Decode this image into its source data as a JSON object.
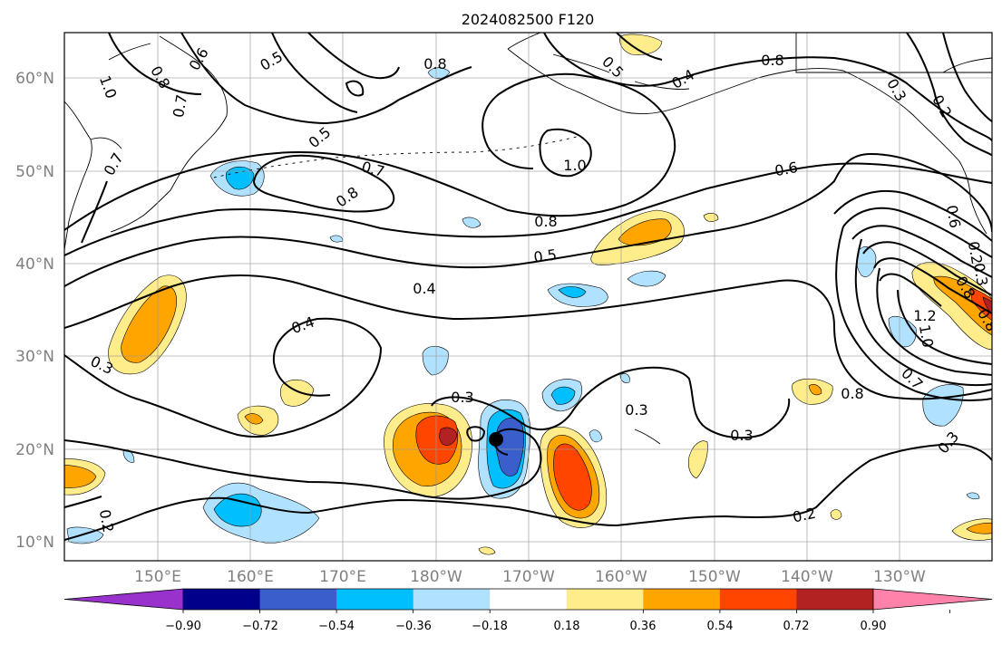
{
  "title": "2024082500 F120",
  "map": {
    "projection": "PlateCarree",
    "lon_range": [
      140,
      240
    ],
    "lat_range": [
      8,
      65
    ],
    "gridlines": true,
    "lat_ticks": [
      "10°N",
      "20°N",
      "30°N",
      "40°N",
      "50°N",
      "60°N"
    ],
    "lon_ticks": [
      "150°E",
      "160°E",
      "170°E",
      "180°W",
      "170°W",
      "160°W",
      "150°W",
      "140°W",
      "130°W"
    ],
    "storm_marker": {
      "lon": -173.5,
      "lat": 21
    }
  },
  "contour_labels": [
    "0.8",
    "0.5",
    "0.6",
    "0.7",
    "1.0",
    "0.8",
    "0.5",
    "0.7",
    "0.5",
    "0.8",
    "0.7",
    "0.8",
    "1.0",
    "0.6",
    "0.8",
    "0.5",
    "0.4",
    "0.4",
    "0.3",
    "0.3",
    "0.3",
    "0.3",
    "0.2",
    "0.2",
    "0.6",
    "0.2",
    "0.3",
    "0.2",
    "0.3",
    "0.4",
    "0.8",
    "1.2",
    "1.0",
    "0.7",
    "0.3",
    "0.8",
    "0.8"
  ],
  "colorbar": {
    "ticks": [
      "−0.90",
      "−0.72",
      "−0.54",
      "−0.36",
      "−0.18",
      "0.18",
      "0.36",
      "0.54",
      "0.72",
      "0.90"
    ],
    "colors": [
      "#9932cc",
      "#00008b",
      "#3a5fcd",
      "#00bfff",
      "#b0e2ff",
      "#ffffff",
      "#ffec8b",
      "#ffa500",
      "#ff4500",
      "#b22222",
      "#ff82ab"
    ],
    "extend": "both"
  }
}
